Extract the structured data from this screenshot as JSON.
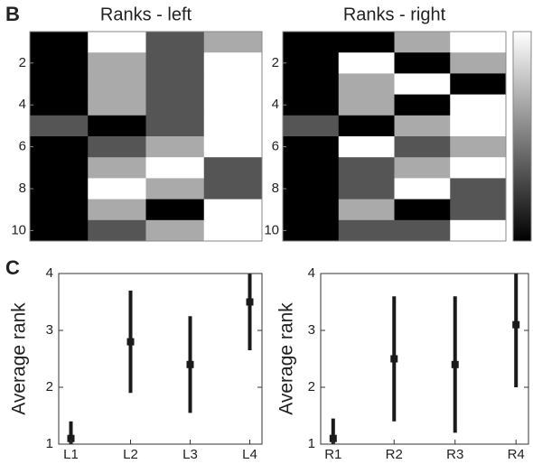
{
  "panel_labels": [
    "B",
    "C"
  ],
  "chart_data": [
    {
      "type": "heatmap",
      "title": "Ranks - left",
      "values": [
        [
          1,
          4,
          2,
          3
        ],
        [
          1,
          3,
          2,
          4
        ],
        [
          1,
          3,
          2,
          4
        ],
        [
          1,
          3,
          2,
          4
        ],
        [
          2,
          1,
          2,
          4
        ],
        [
          1,
          2,
          3,
          4
        ],
        [
          1,
          3,
          4,
          2
        ],
        [
          1,
          4,
          3,
          2
        ],
        [
          1,
          3,
          1,
          4
        ],
        [
          1,
          2,
          3,
          4
        ]
      ],
      "ylim": [
        0.5,
        10.5
      ],
      "yticks": [
        2,
        4,
        6,
        8,
        10
      ],
      "cmap": "gray",
      "clim": [
        1,
        4
      ],
      "colorbar": false
    },
    {
      "type": "heatmap",
      "title": "Ranks - right",
      "values": [
        [
          1,
          1,
          3,
          4
        ],
        [
          1,
          4,
          1,
          3
        ],
        [
          1,
          3,
          4,
          1
        ],
        [
          1,
          3,
          1,
          4
        ],
        [
          2,
          1,
          3,
          4
        ],
        [
          1,
          4,
          2,
          3
        ],
        [
          1,
          2,
          3,
          4
        ],
        [
          1,
          2,
          4,
          2
        ],
        [
          1,
          3,
          1,
          2
        ],
        [
          1,
          2,
          2,
          4
        ]
      ],
      "ylim": [
        0.5,
        10.5
      ],
      "yticks": [
        2,
        4,
        6,
        8,
        10
      ],
      "cmap": "gray",
      "clim": [
        1,
        4
      ],
      "colorbar": true
    },
    {
      "type": "errorbar",
      "y_label": "Average rank",
      "categories": [
        "L1",
        "L2",
        "L3",
        "L4"
      ],
      "values": [
        1.1,
        2.8,
        2.4,
        3.5
      ],
      "errors": [
        0.3,
        0.9,
        0.85,
        0.85
      ],
      "color": "#1a1a1a",
      "ylim": [
        1,
        4
      ],
      "yticks": [
        1,
        2,
        3,
        4
      ]
    },
    {
      "type": "errorbar",
      "y_label": "Average rank",
      "categories": [
        "R1",
        "R2",
        "R3",
        "R4"
      ],
      "values": [
        1.1,
        2.5,
        2.4,
        3.1
      ],
      "errors": [
        0.35,
        1.1,
        1.2,
        1.1
      ],
      "color": "#1a1a1a",
      "ylim": [
        1,
        4
      ],
      "yticks": [
        1,
        2,
        3,
        4
      ]
    }
  ]
}
